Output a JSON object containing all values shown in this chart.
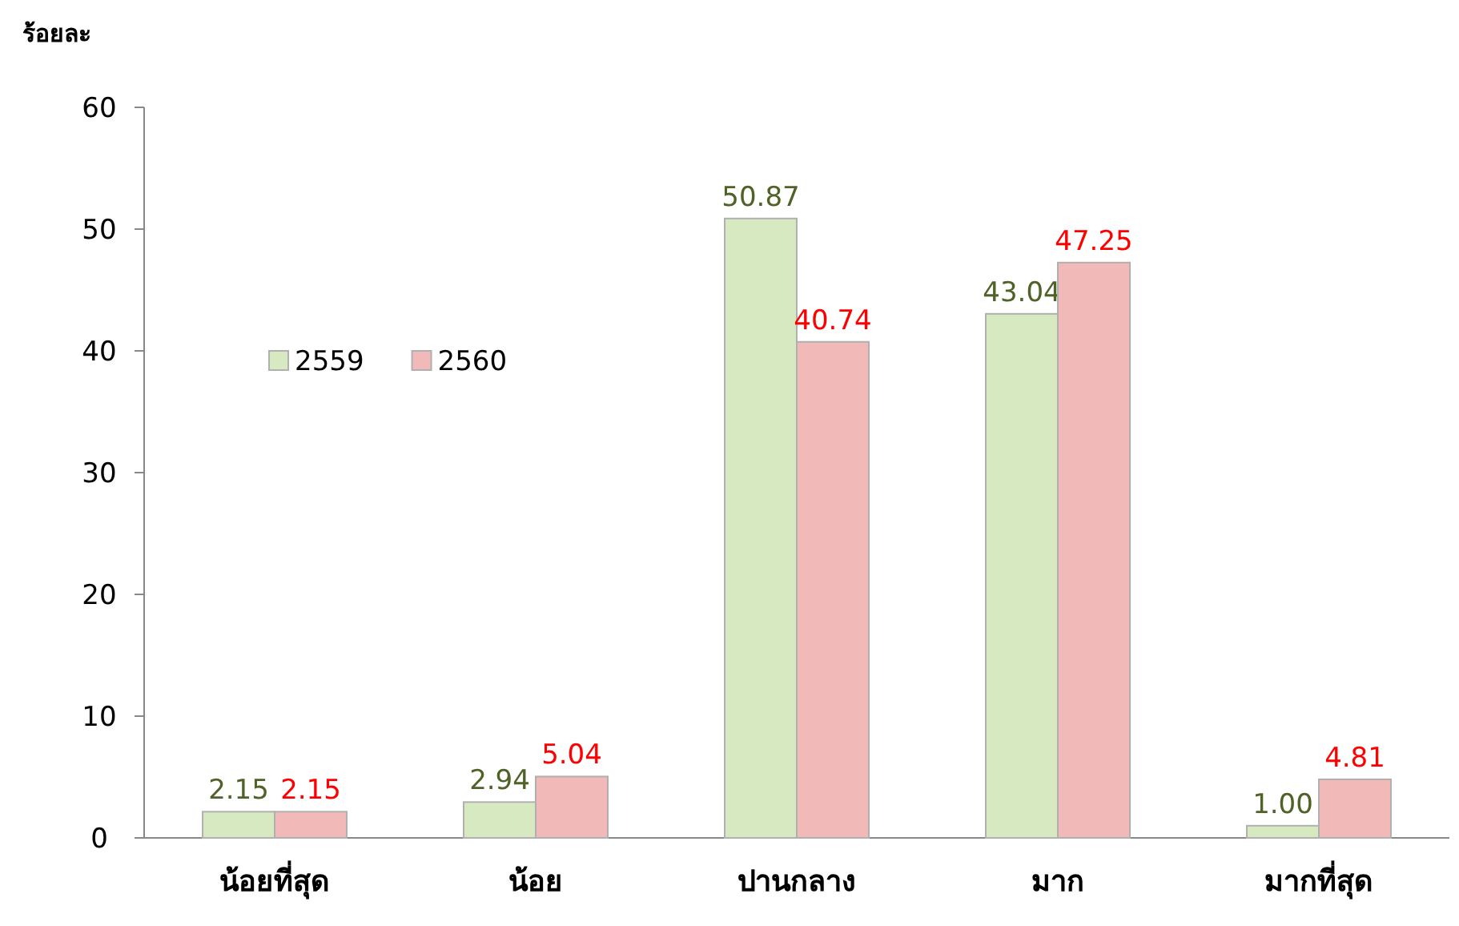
{
  "chart_data": {
    "type": "bar",
    "ylabel": "ร้อยละ",
    "categories": [
      "น้อยที่สุด",
      "น้อย",
      "ปานกลาง",
      "มาก",
      "มากที่สุด"
    ],
    "series": [
      {
        "name": "2559",
        "color": "#d7e9c0",
        "values": [
          2.15,
          2.94,
          50.87,
          43.04,
          1.0
        ],
        "value_labels": [
          "2.15",
          "2.94",
          "50.87",
          "43.04",
          "1.00"
        ]
      },
      {
        "name": "2560",
        "color": "#f2b9b9",
        "values": [
          2.15,
          5.04,
          40.74,
          47.25,
          4.81
        ],
        "value_labels": [
          "2.15",
          "5.04",
          "40.74",
          "47.25",
          "4.81"
        ]
      }
    ],
    "ylim": [
      0,
      60
    ],
    "yticks": [
      0,
      10,
      20,
      30,
      40,
      50,
      60
    ],
    "grid": false,
    "legend": "top left"
  }
}
